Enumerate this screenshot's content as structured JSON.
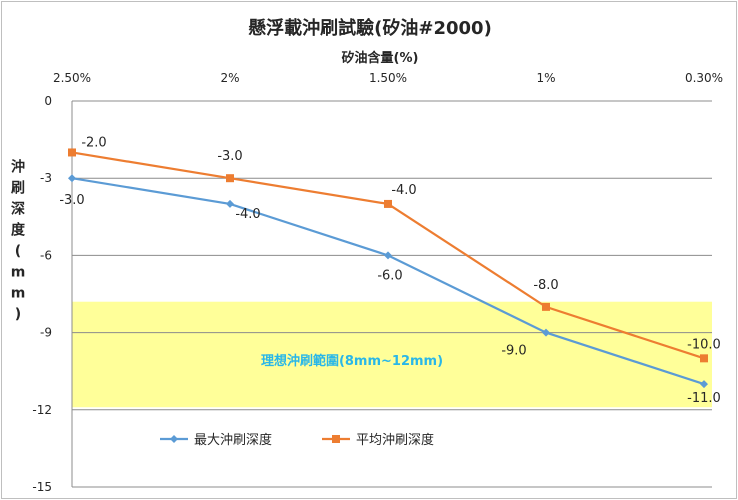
{
  "chart_data": {
    "type": "line",
    "title": "懸浮載沖刷試驗(矽油#2000)",
    "xlabel": "矽油含量(%)",
    "ylabel": "沖刷深度(mm)",
    "categories": [
      "2.50%",
      "2%",
      "1.50%",
      "1%",
      "0.30%"
    ],
    "x_axis_position": "top",
    "ylim": [
      -15,
      0
    ],
    "yticks": [
      0,
      -3,
      -6,
      -9,
      -12,
      -15
    ],
    "grid": true,
    "legend_position": "bottom-left",
    "series": [
      {
        "name": "最大沖刷深度",
        "values": [
          -3.0,
          -4.0,
          -6.0,
          -9.0,
          -11.0
        ],
        "labels": [
          "-3.0",
          "-4.0",
          "-6.0",
          "-9.0",
          "-11.0"
        ],
        "color": "#5b9bd5",
        "marker": "diamond"
      },
      {
        "name": "平均沖刷深度",
        "values": [
          -2.0,
          -3.0,
          -4.0,
          -8.0,
          -10.0
        ],
        "labels": [
          "-2.0",
          "-3.0",
          "-4.0",
          "-8.0",
          "-10.0"
        ],
        "color": "#ed7d31",
        "marker": "square"
      }
    ],
    "band": {
      "label": "理想沖刷範圍(8mm~12mm)",
      "from": -7.8,
      "to": -11.9,
      "color": "#ffff99"
    }
  }
}
